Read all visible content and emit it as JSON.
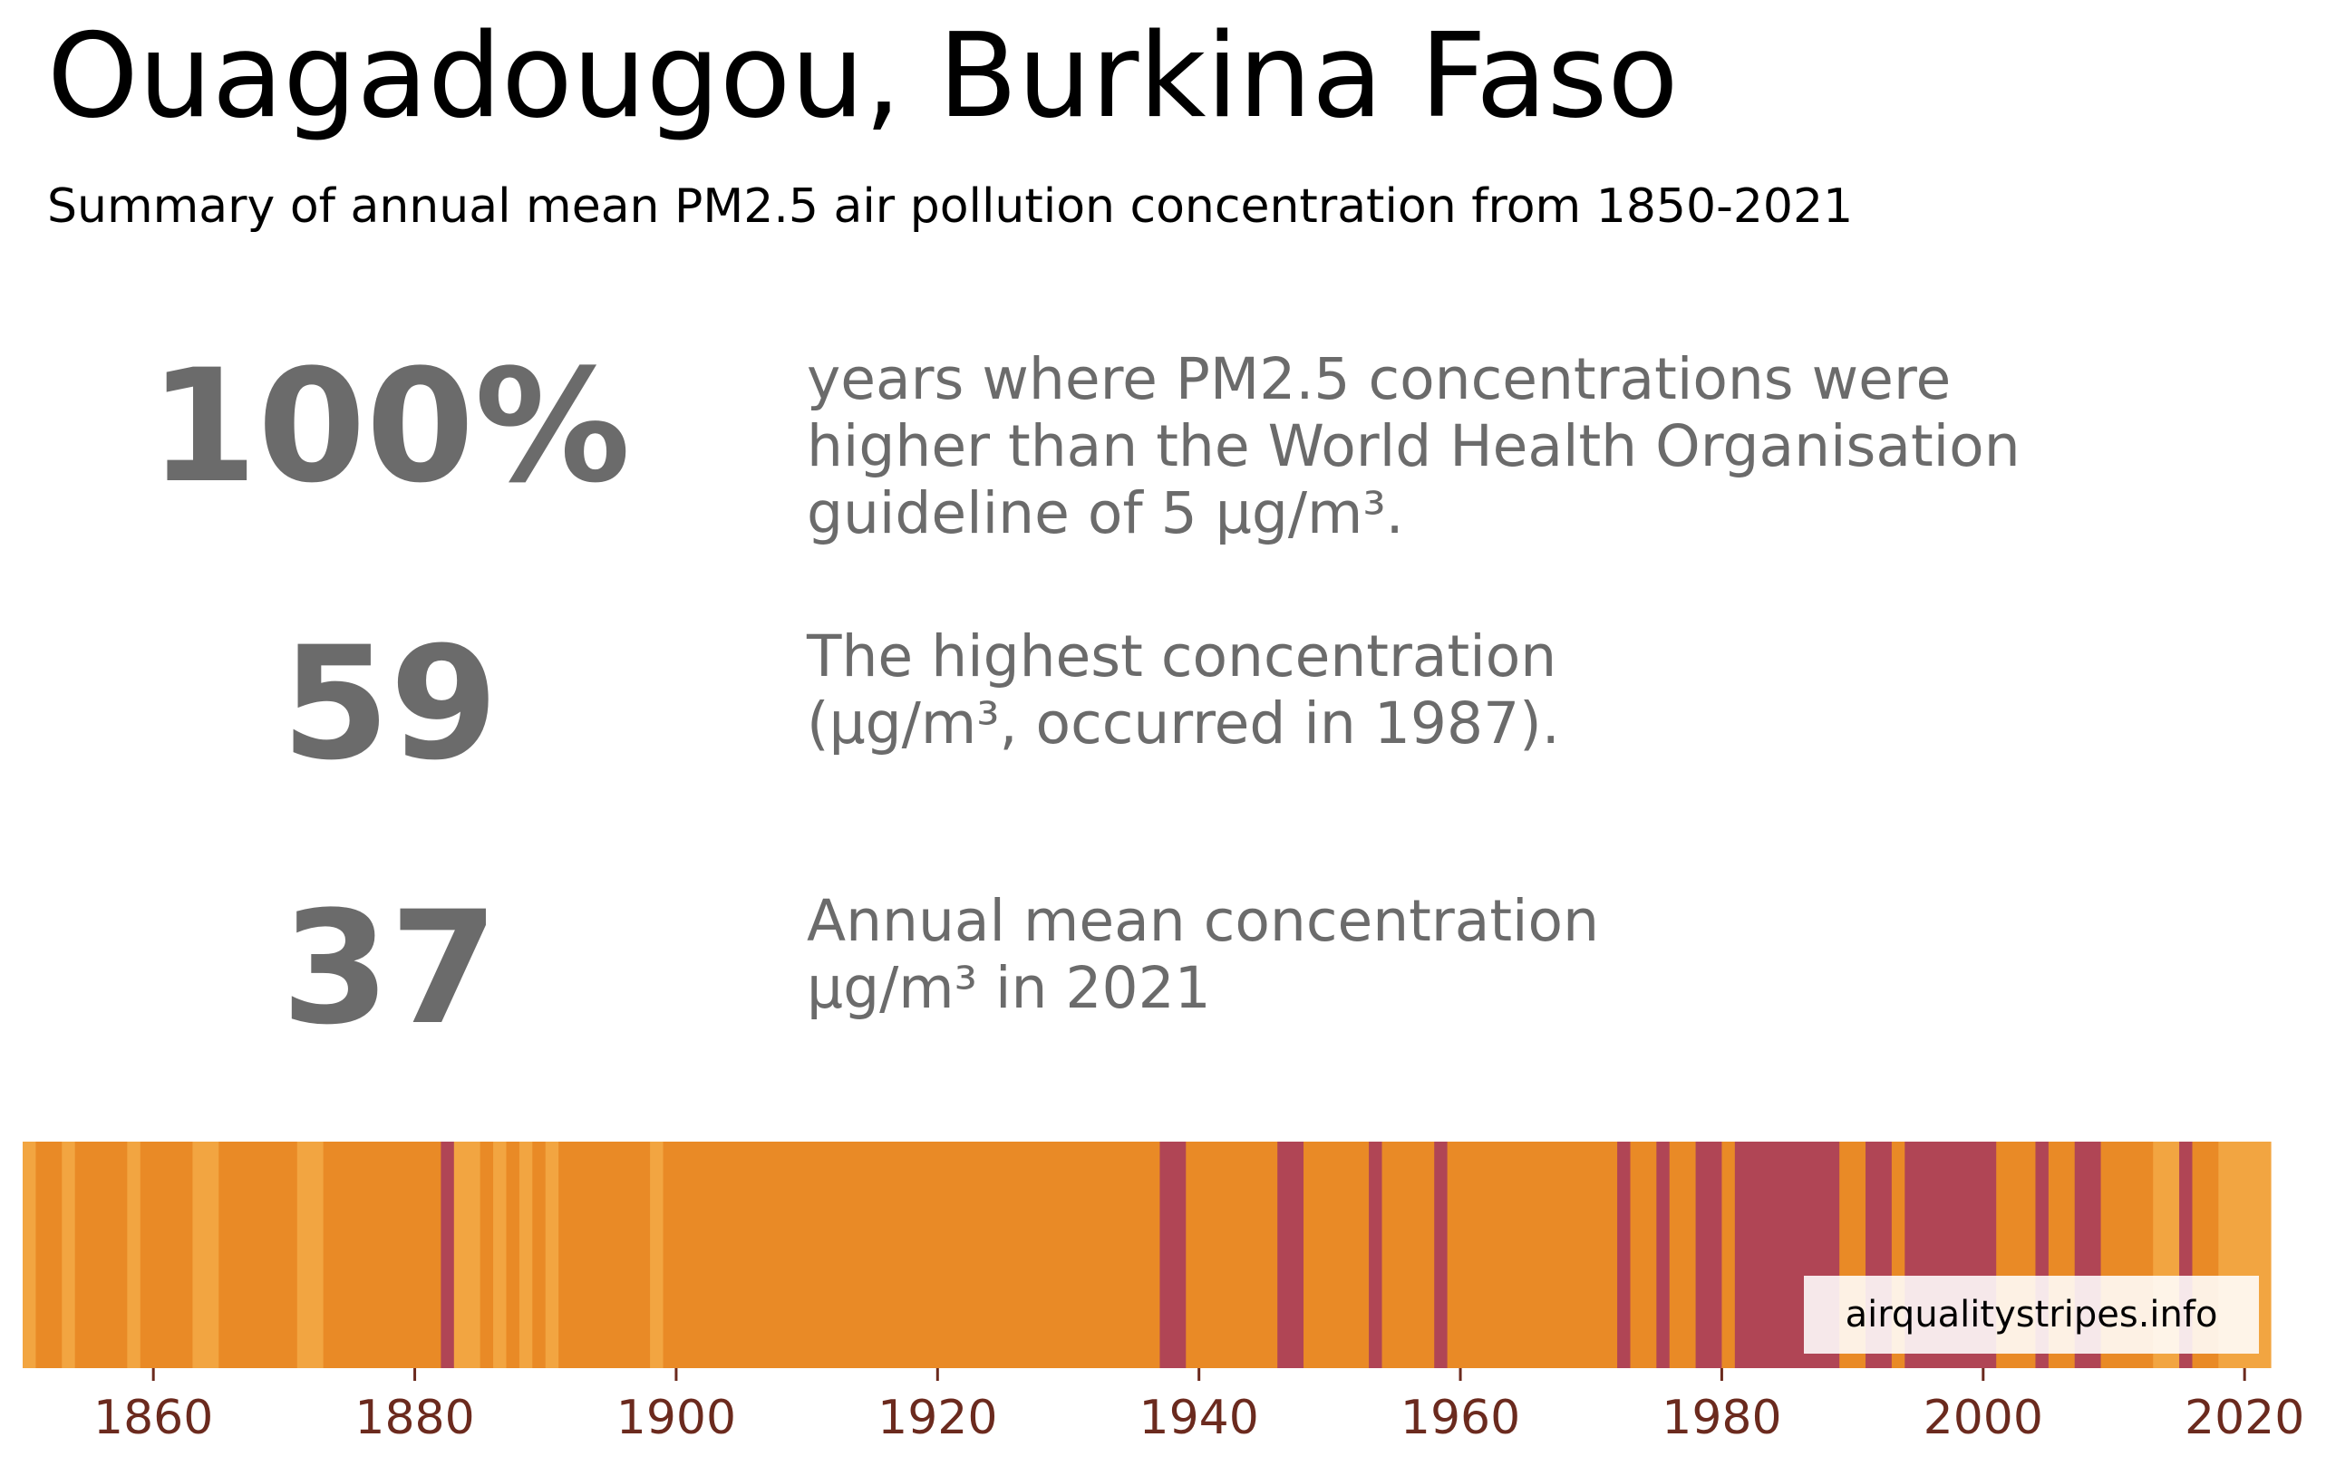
{
  "header": {
    "title": "Ouagadougou, Burkina Faso",
    "subtitle": "Summary of annual mean PM2.5 air pollution concentration from 1850-2021"
  },
  "stats": [
    {
      "value": "100%",
      "lines": [
        "years where PM2.5 concentrations were",
        "higher than the World Health Organisation",
        "guideline of 5 μg/m³."
      ]
    },
    {
      "value": "59",
      "lines": [
        "The highest concentration",
        "(μg/m³, occurred in 1987)."
      ]
    },
    {
      "value": "37",
      "lines": [
        "Annual mean concentration",
        "μg/m³ in 2021"
      ]
    }
  ],
  "credit": "airqualitystripes.info",
  "colors": {
    "stat_text": "#6b6b6b",
    "tick_label": "#6b2a1e",
    "level_low": "#f2a541",
    "level_mid": "#e98a26",
    "level_high": "#b04555"
  },
  "chart_data": {
    "type": "heatmap",
    "description_ticks": [
      1860,
      1880,
      1900,
      1920,
      1940,
      1960,
      1980,
      2000,
      2020
    ],
    "x_range": [
      1850,
      2022
    ],
    "color_levels": [
      "low",
      "mid",
      "high"
    ],
    "segments": [
      {
        "start": 1850,
        "end": 1851,
        "level": "low"
      },
      {
        "start": 1851,
        "end": 1853,
        "level": "mid"
      },
      {
        "start": 1853,
        "end": 1854,
        "level": "low"
      },
      {
        "start": 1854,
        "end": 1858,
        "level": "mid"
      },
      {
        "start": 1858,
        "end": 1859,
        "level": "low"
      },
      {
        "start": 1859,
        "end": 1863,
        "level": "mid"
      },
      {
        "start": 1863,
        "end": 1865,
        "level": "low"
      },
      {
        "start": 1865,
        "end": 1871,
        "level": "mid"
      },
      {
        "start": 1871,
        "end": 1873,
        "level": "low"
      },
      {
        "start": 1873,
        "end": 1882,
        "level": "mid"
      },
      {
        "start": 1882,
        "end": 1883,
        "level": "high"
      },
      {
        "start": 1883,
        "end": 1885,
        "level": "low"
      },
      {
        "start": 1885,
        "end": 1886,
        "level": "mid"
      },
      {
        "start": 1886,
        "end": 1887,
        "level": "low"
      },
      {
        "start": 1887,
        "end": 1888,
        "level": "mid"
      },
      {
        "start": 1888,
        "end": 1889,
        "level": "low"
      },
      {
        "start": 1889,
        "end": 1890,
        "level": "mid"
      },
      {
        "start": 1890,
        "end": 1891,
        "level": "low"
      },
      {
        "start": 1891,
        "end": 1898,
        "level": "mid"
      },
      {
        "start": 1898,
        "end": 1899,
        "level": "low"
      },
      {
        "start": 1899,
        "end": 1937,
        "level": "mid"
      },
      {
        "start": 1937,
        "end": 1939,
        "level": "high"
      },
      {
        "start": 1939,
        "end": 1946,
        "level": "mid"
      },
      {
        "start": 1946,
        "end": 1948,
        "level": "high"
      },
      {
        "start": 1948,
        "end": 1953,
        "level": "mid"
      },
      {
        "start": 1953,
        "end": 1954,
        "level": "high"
      },
      {
        "start": 1954,
        "end": 1958,
        "level": "mid"
      },
      {
        "start": 1958,
        "end": 1959,
        "level": "high"
      },
      {
        "start": 1959,
        "end": 1972,
        "level": "mid"
      },
      {
        "start": 1972,
        "end": 1973,
        "level": "high"
      },
      {
        "start": 1973,
        "end": 1975,
        "level": "mid"
      },
      {
        "start": 1975,
        "end": 1976,
        "level": "high"
      },
      {
        "start": 1976,
        "end": 1978,
        "level": "mid"
      },
      {
        "start": 1978,
        "end": 1980,
        "level": "high"
      },
      {
        "start": 1980,
        "end": 1981,
        "level": "mid"
      },
      {
        "start": 1981,
        "end": 1989,
        "level": "high"
      },
      {
        "start": 1989,
        "end": 1991,
        "level": "mid"
      },
      {
        "start": 1991,
        "end": 1993,
        "level": "high"
      },
      {
        "start": 1993,
        "end": 1994,
        "level": "mid"
      },
      {
        "start": 1994,
        "end": 2001,
        "level": "high"
      },
      {
        "start": 2001,
        "end": 2004,
        "level": "mid"
      },
      {
        "start": 2004,
        "end": 2005,
        "level": "high"
      },
      {
        "start": 2005,
        "end": 2007,
        "level": "mid"
      },
      {
        "start": 2007,
        "end": 2009,
        "level": "high"
      },
      {
        "start": 2009,
        "end": 2013,
        "level": "mid"
      },
      {
        "start": 2013,
        "end": 2015,
        "level": "low"
      },
      {
        "start": 2015,
        "end": 2016,
        "level": "high"
      },
      {
        "start": 2016,
        "end": 2018,
        "level": "mid"
      },
      {
        "start": 2018,
        "end": 2022,
        "level": "low"
      }
    ],
    "xticks": [
      1860,
      1880,
      1900,
      1920,
      1940,
      1960,
      1980,
      2000,
      2020
    ],
    "grid": false,
    "legend": "none"
  }
}
